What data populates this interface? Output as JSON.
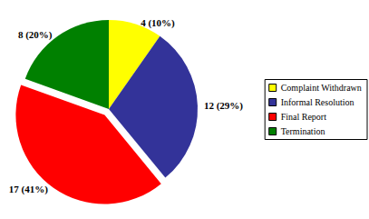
{
  "chart_data": {
    "type": "pie",
    "categories": [
      "Complaint Withdrawn",
      "Informal Resolution",
      "Final Report",
      "Termination"
    ],
    "values": [
      4,
      12,
      17,
      8
    ],
    "value_labels": [
      "4 (10%)",
      "12 (29%)",
      "17 (41%)",
      "8 (20%)"
    ],
    "colors": [
      "#ffff00",
      "#333399",
      "#ff0000",
      "#008000"
    ],
    "legend": "right",
    "data_labels": true
  }
}
